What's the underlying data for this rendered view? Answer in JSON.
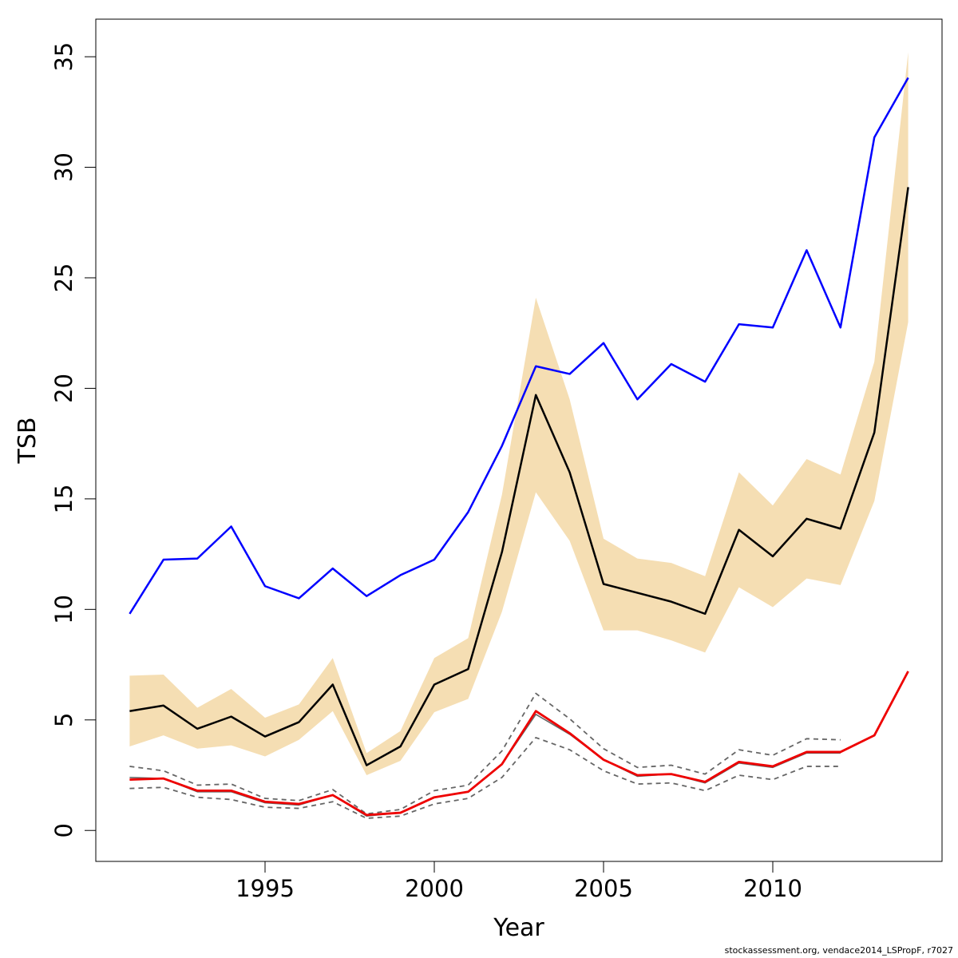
{
  "chart_data": {
    "type": "line",
    "title": "",
    "xlabel": "Year",
    "ylabel": "TSB",
    "xlim": [
      1990.0,
      2015.0
    ],
    "ylim": [
      -1.4,
      36.7
    ],
    "xticks": [
      1995,
      2000,
      2005,
      2010
    ],
    "yticks": [
      0,
      5,
      10,
      15,
      20,
      25,
      30,
      35
    ],
    "grid": false,
    "legend": "none",
    "colors": {
      "band": "#f5deb3",
      "blue": "#0000ff",
      "black": "#000000",
      "red": "#ee0000",
      "dashed": "#666666"
    },
    "x": [
      1991,
      1992,
      1993,
      1994,
      1995,
      1996,
      1997,
      1998,
      1999,
      2000,
      2001,
      2002,
      2003,
      2004,
      2005,
      2006,
      2007,
      2008,
      2009,
      2010,
      2011,
      2012,
      2013,
      2014
    ],
    "band": {
      "upper": [
        7.0,
        7.05,
        5.55,
        6.4,
        5.1,
        5.7,
        7.8,
        3.5,
        4.5,
        7.8,
        8.7,
        15.2,
        24.1,
        19.5,
        13.2,
        12.3,
        12.1,
        11.5,
        16.2,
        14.7,
        16.8,
        16.1,
        21.2,
        35.2
      ],
      "lower": [
        3.8,
        4.3,
        3.7,
        3.85,
        3.35,
        4.1,
        5.4,
        2.5,
        3.15,
        5.35,
        5.95,
        9.9,
        15.3,
        13.1,
        9.05,
        9.05,
        8.6,
        8.05,
        11.0,
        10.1,
        11.4,
        11.1,
        14.9,
        23.0
      ]
    },
    "series": [
      {
        "values": [
          9.8,
          12.25,
          12.3,
          13.75,
          11.05,
          10.5,
          11.85,
          10.6,
          11.55,
          12.25,
          14.4,
          17.4,
          21.0,
          20.65,
          22.05,
          19.5,
          21.1,
          20.3,
          22.9,
          22.75,
          26.25,
          22.75,
          31.35,
          34.05
        ]
      },
      {
        "values": [
          5.4,
          5.65,
          4.6,
          5.15,
          4.25,
          4.9,
          6.6,
          2.95,
          3.8,
          6.6,
          7.3,
          12.6,
          19.7,
          16.2,
          11.15,
          10.75,
          10.35,
          9.8,
          13.6,
          12.4,
          14.1,
          13.65,
          18.0,
          29.1
        ]
      },
      {
        "values": [
          2.3,
          2.35,
          1.8,
          1.8,
          1.3,
          1.2,
          1.6,
          0.7,
          0.8,
          1.5,
          1.75,
          3.0,
          5.4,
          4.4,
          3.2,
          2.5,
          2.55,
          2.2,
          3.1,
          2.9,
          3.55,
          3.55,
          4.3,
          7.2
        ]
      },
      {
        "values": [
          2.9,
          2.7,
          2.05,
          2.1,
          1.45,
          1.35,
          1.85,
          0.75,
          0.95,
          1.8,
          2.05,
          3.6,
          6.2,
          5.05,
          3.7,
          2.85,
          2.95,
          2.55,
          3.65,
          3.4,
          4.15,
          4.1,
          null,
          null
        ]
      },
      {
        "values": [
          1.9,
          1.95,
          1.5,
          1.4,
          1.05,
          1.0,
          1.3,
          0.55,
          0.65,
          1.2,
          1.45,
          2.4,
          4.2,
          3.65,
          2.7,
          2.1,
          2.15,
          1.8,
          2.5,
          2.3,
          2.9,
          2.9,
          null,
          null
        ]
      },
      {
        "values": [
          2.4,
          2.35,
          1.75,
          1.75,
          1.25,
          1.15,
          1.6,
          0.65,
          0.8,
          1.5,
          1.75,
          3.0,
          5.25,
          4.35,
          3.2,
          2.45,
          2.55,
          2.15,
          3.05,
          2.85,
          3.5,
          3.5,
          null,
          null
        ]
      }
    ]
  },
  "footer": {
    "credit": "stockassessment.org, vendace2014_LSPropF, r7027"
  }
}
